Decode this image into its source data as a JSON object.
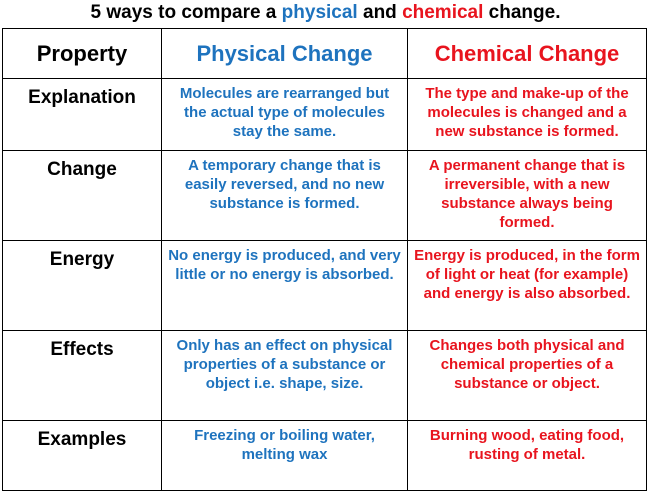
{
  "title": {
    "prefix": "5 ways to compare a ",
    "physical": "physical",
    "middle": " and ",
    "chemical": "chemical",
    "suffix": " change."
  },
  "table": {
    "headers": [
      "Property",
      "Physical Change",
      "Chemical Change"
    ],
    "rows": [
      {
        "property": "Explanation",
        "physical": "Molecules are rearranged but the actual type of molecules stay the same.",
        "chemical": "The type and make-up of the molecules is changed and a new substance is formed."
      },
      {
        "property": "Change",
        "physical": "A temporary change that is easily reversed, and no new substance is formed.",
        "chemical": "A permanent change that is irreversible, with a new substance always being formed."
      },
      {
        "property": "Energy",
        "physical": "No energy is produced, and very little or no energy is absorbed.",
        "chemical": "Energy is produced, in the form of light or heat (for example) and energy is also absorbed."
      },
      {
        "property": "Effects",
        "physical": "Only has an effect on physical properties of a substance or object i.e. shape, size.",
        "chemical": "Changes both physical and chemical properties of a substance or object."
      },
      {
        "property": "Examples",
        "physical": "Freezing or boiling water, melting wax",
        "chemical": "Burning wood, eating food, rusting of metal."
      }
    ]
  },
  "colors": {
    "physical": "#1e73be",
    "chemical": "#e8141e"
  }
}
